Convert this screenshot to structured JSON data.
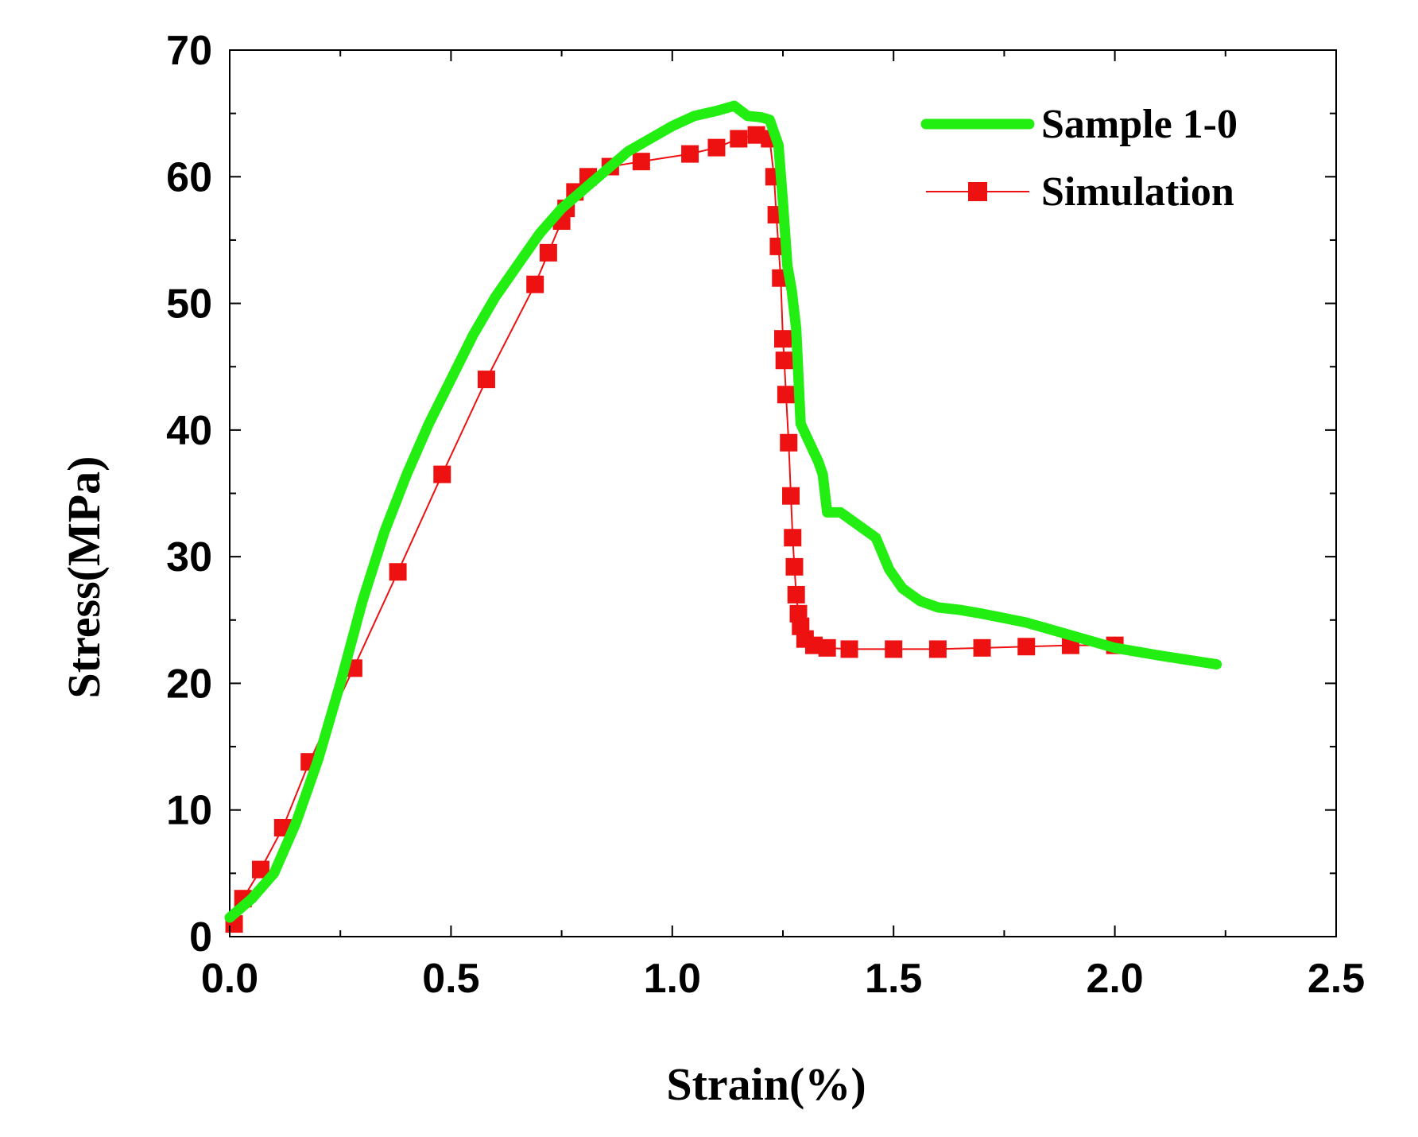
{
  "chart_data": {
    "type": "line",
    "title": "",
    "xlabel": "Strain(%)",
    "ylabel": "Stress(MPa)",
    "xlim": [
      0.0,
      2.5
    ],
    "ylim": [
      0,
      70
    ],
    "x_ticks": [
      "0.0",
      "0.5",
      "1.0",
      "1.5",
      "2.0",
      "2.5"
    ],
    "y_ticks": [
      "0",
      "10",
      "20",
      "30",
      "40",
      "50",
      "60",
      "70"
    ],
    "grid": false,
    "legend_position": "top-right",
    "series": [
      {
        "name": "Sample 1-0",
        "color": "#22ee11",
        "marker": "none",
        "points": [
          [
            0.0,
            1.5
          ],
          [
            0.05,
            3.0
          ],
          [
            0.1,
            5.0
          ],
          [
            0.15,
            9.0
          ],
          [
            0.2,
            14.0
          ],
          [
            0.25,
            20.0
          ],
          [
            0.3,
            26.5
          ],
          [
            0.35,
            32.0
          ],
          [
            0.4,
            36.5
          ],
          [
            0.45,
            40.5
          ],
          [
            0.5,
            44.0
          ],
          [
            0.55,
            47.5
          ],
          [
            0.6,
            50.5
          ],
          [
            0.65,
            53.0
          ],
          [
            0.7,
            55.5
          ],
          [
            0.75,
            57.5
          ],
          [
            0.8,
            59.0
          ],
          [
            0.85,
            60.5
          ],
          [
            0.9,
            62.0
          ],
          [
            0.95,
            63.0
          ],
          [
            1.0,
            64.0
          ],
          [
            1.05,
            64.8
          ],
          [
            1.1,
            65.2
          ],
          [
            1.14,
            65.6
          ],
          [
            1.17,
            64.8
          ],
          [
            1.2,
            64.7
          ],
          [
            1.22,
            64.5
          ],
          [
            1.24,
            62.5
          ],
          [
            1.25,
            58.0
          ],
          [
            1.26,
            53.0
          ],
          [
            1.27,
            51.0
          ],
          [
            1.28,
            48.0
          ],
          [
            1.29,
            40.5
          ],
          [
            1.31,
            39.0
          ],
          [
            1.33,
            37.5
          ],
          [
            1.34,
            36.5
          ],
          [
            1.35,
            33.5
          ],
          [
            1.38,
            33.5
          ],
          [
            1.42,
            32.5
          ],
          [
            1.46,
            31.5
          ],
          [
            1.49,
            29.0
          ],
          [
            1.52,
            27.5
          ],
          [
            1.56,
            26.5
          ],
          [
            1.6,
            26.0
          ],
          [
            1.65,
            25.8
          ],
          [
            1.7,
            25.5
          ],
          [
            1.8,
            24.8
          ],
          [
            1.9,
            23.8
          ],
          [
            2.0,
            22.8
          ],
          [
            2.1,
            22.2
          ],
          [
            2.23,
            21.5
          ]
        ]
      },
      {
        "name": "Simulation",
        "color": "#ee1111",
        "marker": "square",
        "points": [
          [
            0.01,
            1.0
          ],
          [
            0.03,
            3.0
          ],
          [
            0.07,
            5.3
          ],
          [
            0.12,
            8.6
          ],
          [
            0.18,
            13.8
          ],
          [
            0.28,
            21.2
          ],
          [
            0.38,
            28.8
          ],
          [
            0.48,
            36.5
          ],
          [
            0.58,
            44.0
          ],
          [
            0.69,
            51.5
          ],
          [
            0.72,
            54.0
          ],
          [
            0.75,
            56.5
          ],
          [
            0.76,
            57.5
          ],
          [
            0.78,
            58.8
          ],
          [
            0.81,
            60.0
          ],
          [
            0.86,
            60.8
          ],
          [
            0.93,
            61.2
          ],
          [
            1.04,
            61.8
          ],
          [
            1.1,
            62.3
          ],
          [
            1.15,
            63.0
          ],
          [
            1.19,
            63.3
          ],
          [
            1.22,
            63.0
          ],
          [
            1.23,
            60.0
          ],
          [
            1.235,
            57.0
          ],
          [
            1.24,
            54.5
          ],
          [
            1.245,
            52.0
          ],
          [
            1.25,
            47.2
          ],
          [
            1.253,
            45.5
          ],
          [
            1.257,
            42.8
          ],
          [
            1.263,
            39.0
          ],
          [
            1.268,
            34.8
          ],
          [
            1.272,
            31.5
          ],
          [
            1.276,
            29.2
          ],
          [
            1.28,
            27.0
          ],
          [
            1.285,
            25.5
          ],
          [
            1.29,
            24.5
          ],
          [
            1.3,
            23.5
          ],
          [
            1.32,
            23.0
          ],
          [
            1.35,
            22.8
          ],
          [
            1.4,
            22.7
          ],
          [
            1.5,
            22.7
          ],
          [
            1.6,
            22.7
          ],
          [
            1.7,
            22.8
          ],
          [
            1.8,
            22.9
          ],
          [
            1.9,
            23.0
          ],
          [
            2.0,
            23.0
          ]
        ]
      }
    ]
  }
}
